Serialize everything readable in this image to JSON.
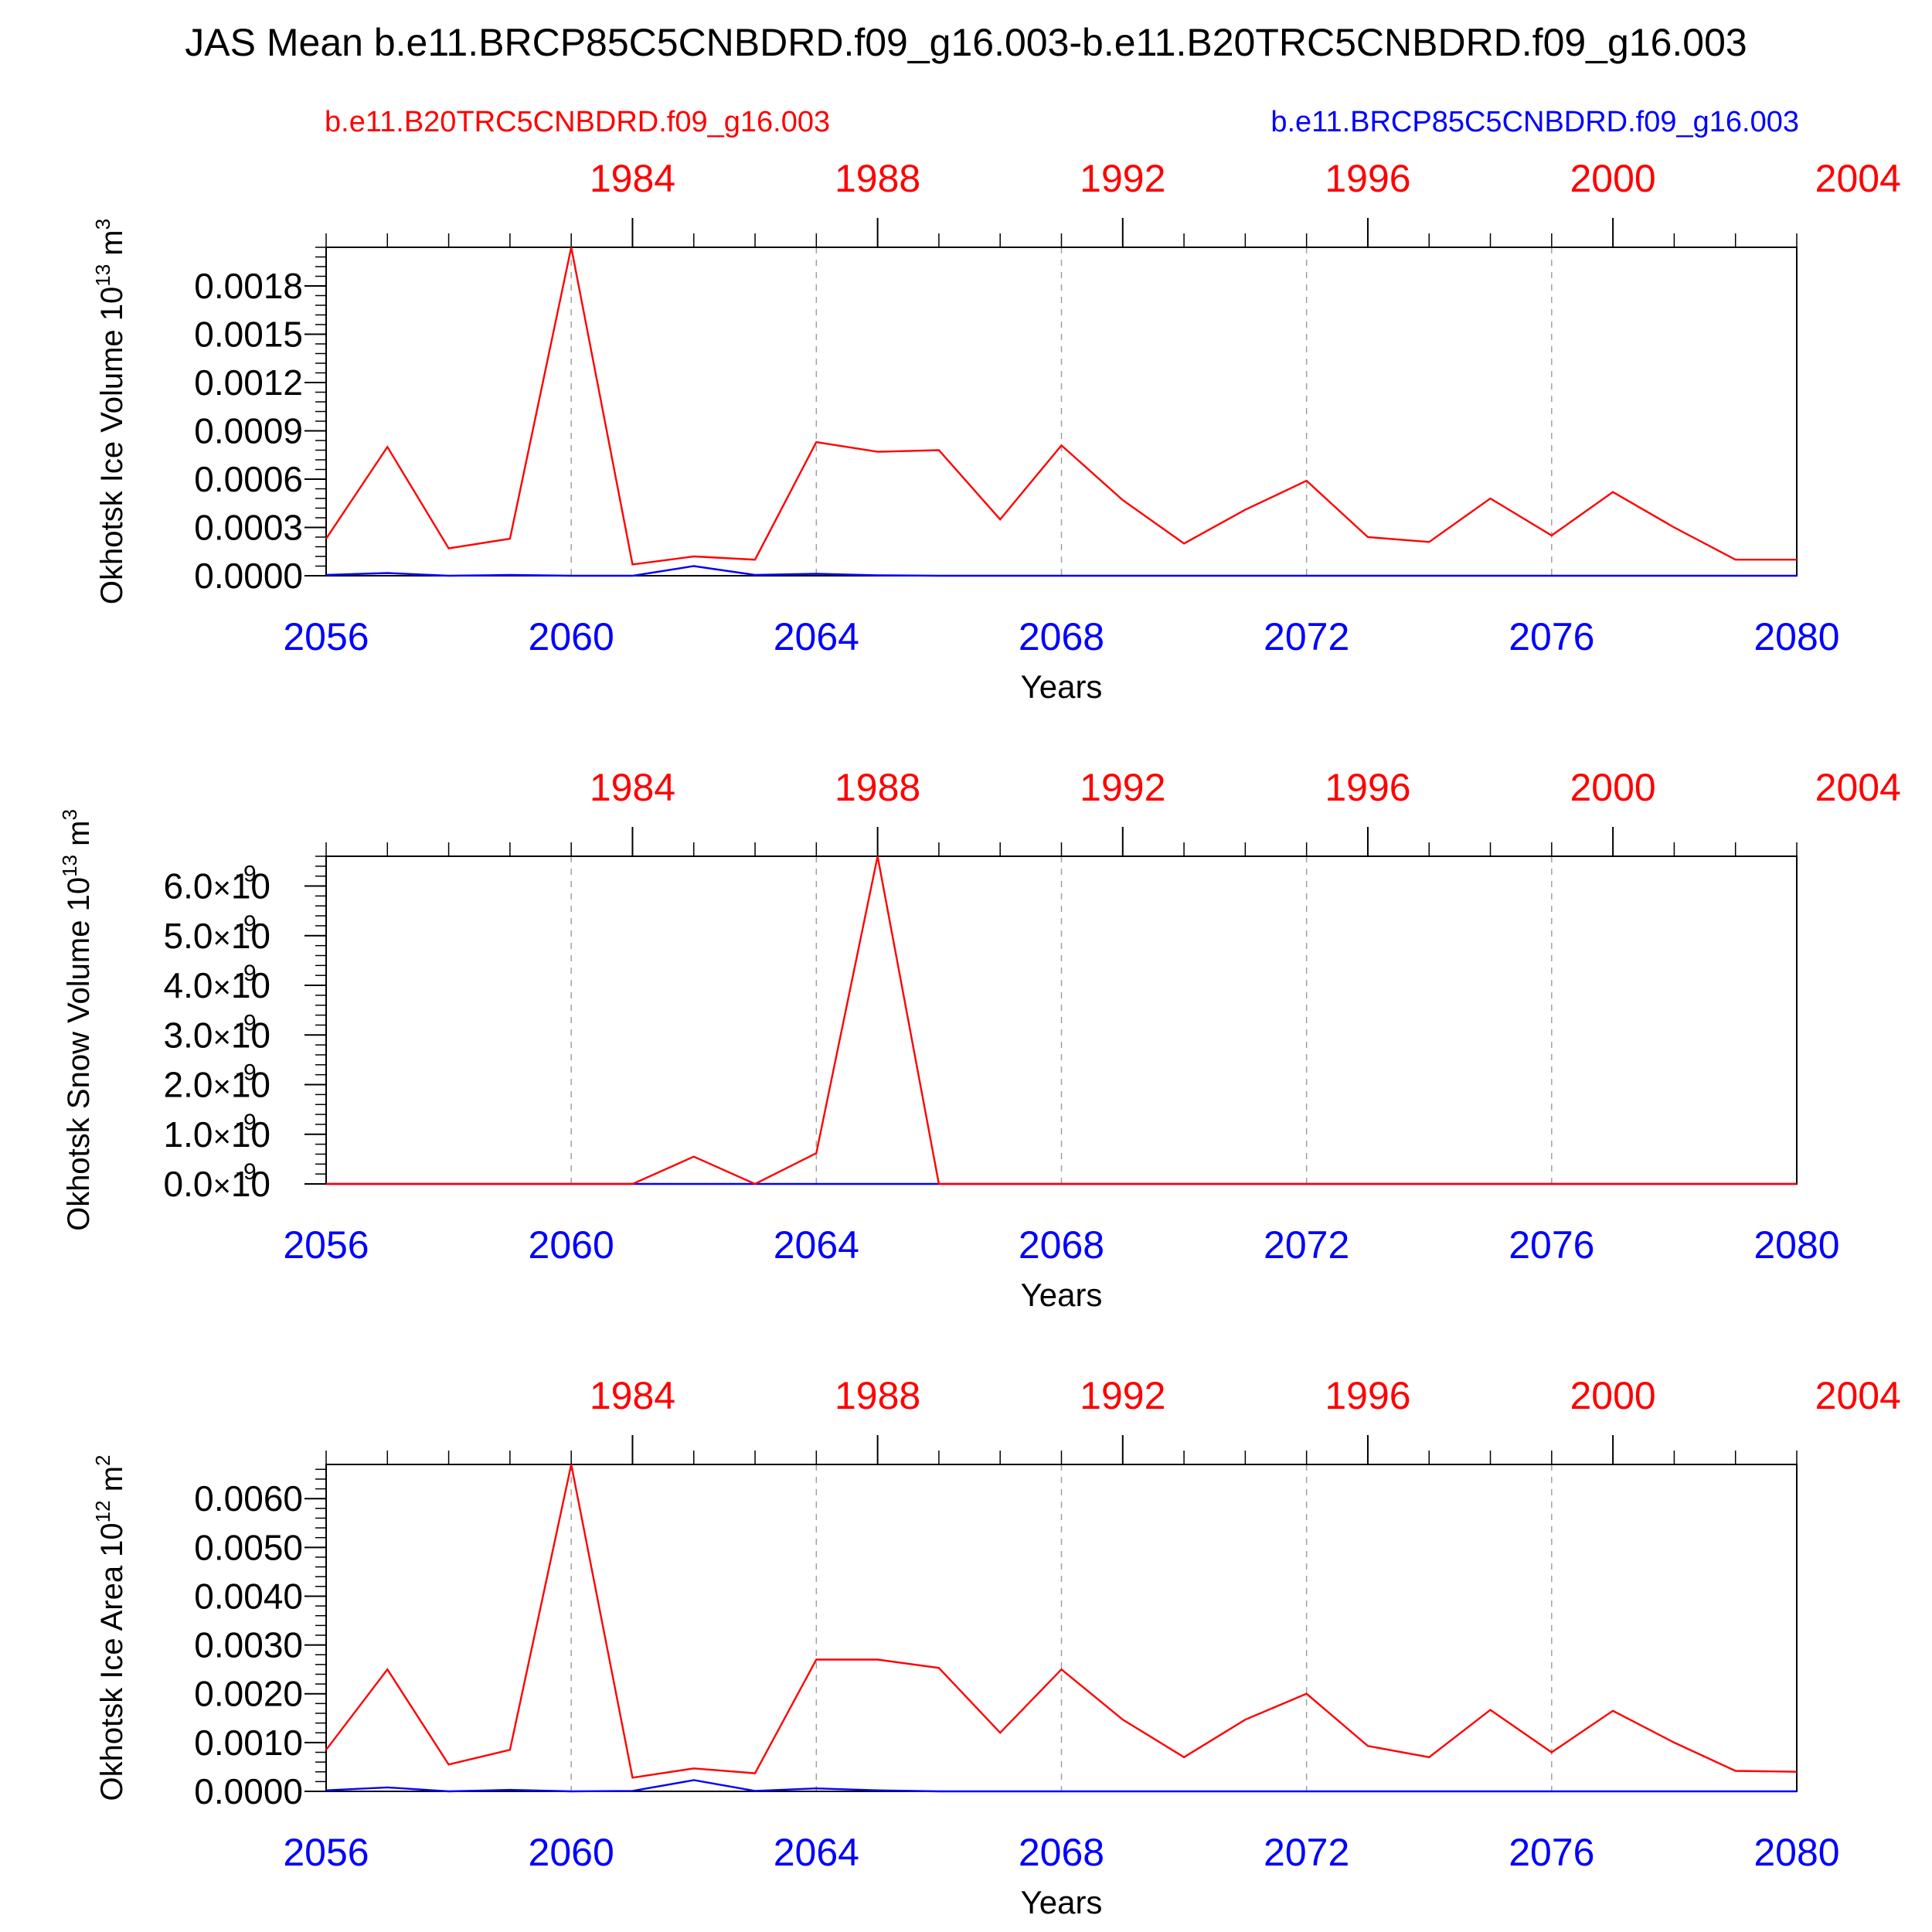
{
  "title": "JAS Mean b.e11.BRCP85C5CNBDRD.f09_g16.003-b.e11.B20TRC5CNBDRD.f09_g16.003",
  "legend": {
    "left": "b.e11.B20TRC5CNBDRD.f09_g16.003",
    "right": "b.e11.BRCP85C5CNBDRD.f09_g16.003"
  },
  "colors": {
    "historical": "#ff0000",
    "future": "#0000ff",
    "axis": "#000000",
    "grid": "#a0a0a0"
  },
  "chart_data": [
    {
      "type": "line",
      "ylabel": "Okhotsk Ice Volume 10",
      "ylabel_exp": "13",
      "ylabel_unit": " m",
      "ylabel_unit_exp": "3",
      "xlabel": "Years",
      "xlim": [
        2056,
        2080
      ],
      "ylim": [
        0,
        0.00204
      ],
      "yticks": [
        0,
        0.0003,
        0.0006,
        0.0009,
        0.0012,
        0.0015,
        0.0018
      ],
      "ytick_labels": [
        "0.0000",
        "0.0003",
        "0.0006",
        "0.0009",
        "0.0012",
        "0.0015",
        "0.0018"
      ],
      "yminor_step": 6e-05,
      "x": [
        2056,
        2057,
        2058,
        2059,
        2060,
        2061,
        2062,
        2063,
        2064,
        2065,
        2066,
        2067,
        2068,
        2069,
        2070,
        2071,
        2072,
        2073,
        2074,
        2075,
        2076,
        2077,
        2078,
        2079,
        2080
      ],
      "series": [
        {
          "name": "b.e11.B20TRC5CNBDRD.f09_g16.003",
          "color": "#ff0000",
          "values": [
            0.00023,
            0.0008,
            0.00017,
            0.00023,
            0.00204,
            7e-05,
            0.00012,
            0.0001,
            0.00083,
            0.00077,
            0.00078,
            0.00035,
            0.00081,
            0.00047,
            0.0002,
            0.00041,
            0.00059,
            0.00024,
            0.00021,
            0.00048,
            0.00025,
            0.00052,
            0.0003,
            0.0001,
            0.0001
          ]
        },
        {
          "name": "b.e11.BRCP85C5CNBDRD.f09_g16.003",
          "color": "#0000ff",
          "values": [
            5e-06,
            1.7e-05,
            0,
            5e-06,
            0,
            0,
            6e-05,
            5e-06,
            1.2e-05,
            3e-06,
            0,
            0,
            0,
            0,
            0,
            0,
            0,
            0,
            0,
            0,
            0,
            0,
            0,
            0,
            0
          ]
        }
      ]
    },
    {
      "type": "line",
      "ylabel": "Okhotsk Snow Volume 10",
      "ylabel_exp": "13",
      "ylabel_unit": " m",
      "ylabel_unit_exp": "3",
      "xlabel": "Years",
      "xlim": [
        2056,
        2080
      ],
      "ylim": [
        0,
        6.6e-09
      ],
      "yticks": [
        0,
        1e-09,
        2e-09,
        3e-09,
        4e-09,
        5e-09,
        6e-09
      ],
      "ytick_labels": [
        "0.0",
        "1.0",
        "2.0",
        "3.0",
        "4.0",
        "5.0",
        "6.0"
      ],
      "ytick_suffix": "10",
      "ytick_suffix_exp": "-9",
      "yminor_step": 2e-10,
      "x": [
        2056,
        2057,
        2058,
        2059,
        2060,
        2061,
        2062,
        2063,
        2064,
        2065,
        2066,
        2067,
        2068,
        2069,
        2070,
        2071,
        2072,
        2073,
        2074,
        2075,
        2076,
        2077,
        2078,
        2079,
        2080
      ],
      "series": [
        {
          "name": "b.e11.B20TRC5CNBDRD.f09_g16.003",
          "color": "#ff0000",
          "values": [
            0,
            0,
            0,
            0,
            0,
            0,
            5.5e-10,
            0,
            6.2e-10,
            6.6e-09,
            0,
            0,
            0,
            0,
            0,
            0,
            0,
            0,
            0,
            0,
            0,
            0,
            0,
            0,
            0
          ]
        },
        {
          "name": "b.e11.BRCP85C5CNBDRD.f09_g16.003",
          "color": "#0000ff",
          "values": [
            0,
            0,
            0,
            0,
            0,
            0,
            0,
            0,
            0,
            0,
            0,
            0,
            0,
            0,
            0,
            0,
            0,
            0,
            0,
            0,
            0,
            0,
            0,
            0,
            0
          ]
        }
      ]
    },
    {
      "type": "line",
      "ylabel": "Okhotsk Ice Area 10",
      "ylabel_exp": "12",
      "ylabel_unit": " m",
      "ylabel_unit_exp": "2",
      "xlabel": "Years",
      "xlim": [
        2056,
        2080
      ],
      "ylim": [
        0,
        0.0067
      ],
      "yticks": [
        0,
        0.001,
        0.002,
        0.003,
        0.004,
        0.005,
        0.006
      ],
      "ytick_labels": [
        "0.0000",
        "0.0010",
        "0.0020",
        "0.0030",
        "0.0040",
        "0.0050",
        "0.0060"
      ],
      "yminor_step": 0.0002,
      "x": [
        2056,
        2057,
        2058,
        2059,
        2060,
        2061,
        2062,
        2063,
        2064,
        2065,
        2066,
        2067,
        2068,
        2069,
        2070,
        2071,
        2072,
        2073,
        2074,
        2075,
        2076,
        2077,
        2078,
        2079,
        2080
      ],
      "series": [
        {
          "name": "b.e11.B20TRC5CNBDRD.f09_g16.003",
          "color": "#ff0000",
          "values": [
            0.00085,
            0.0025,
            0.00055,
            0.00085,
            0.0067,
            0.00028,
            0.00047,
            0.00037,
            0.0027,
            0.0027,
            0.00253,
            0.0012,
            0.0025,
            0.00147,
            0.0007,
            0.00147,
            0.002,
            0.00093,
            0.0007,
            0.00167,
            0.0008,
            0.00165,
            0.001,
            0.00042,
            0.0004
          ]
        },
        {
          "name": "b.e11.BRCP85C5CNBDRD.f09_g16.003",
          "color": "#0000ff",
          "values": [
            2e-05,
            8e-05,
            0,
            3e-05,
            0,
            1e-05,
            0.00023,
            1e-05,
            6e-05,
            2e-05,
            0,
            0,
            0,
            0,
            0,
            0,
            0,
            0,
            0,
            0,
            0,
            0,
            0,
            0,
            0
          ]
        }
      ]
    }
  ],
  "bottom_axis": {
    "ticks": [
      2056,
      2060,
      2064,
      2068,
      2072,
      2076,
      2080
    ],
    "labels": [
      "2056",
      "2060",
      "2064",
      "2068",
      "2072",
      "2076",
      "2080"
    ]
  },
  "top_axis": {
    "note": "historical years aligned with bottom years (offset -77)",
    "offset": -77,
    "major_ticks": [
      1984,
      1988,
      1992,
      1996,
      2000,
      2004
    ],
    "labels": [
      "1984",
      "1988",
      "1992",
      "1996",
      "2000",
      "2004"
    ]
  }
}
